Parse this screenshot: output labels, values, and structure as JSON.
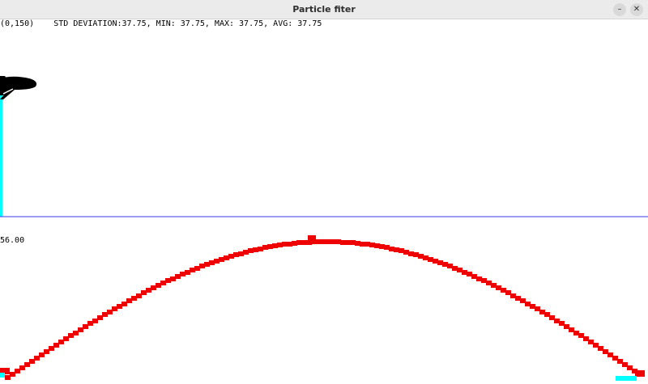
{
  "window": {
    "title": "Particle fiter",
    "minimize_glyph": "–",
    "close_glyph": "✕"
  },
  "overlay": {
    "position_text": "(0,150)",
    "stats_text": "STD DEVIATION:37.75, MIN: 37.75, MAX: 37.75, AVG: 37.75"
  },
  "histogram": {
    "max_label": "56.00"
  },
  "colors": {
    "divider": "#3a3af0",
    "weights": "#ee0000",
    "particles": "#00ffff",
    "plane": "#000000"
  },
  "icons": {
    "plane": "airplane-icon"
  }
}
